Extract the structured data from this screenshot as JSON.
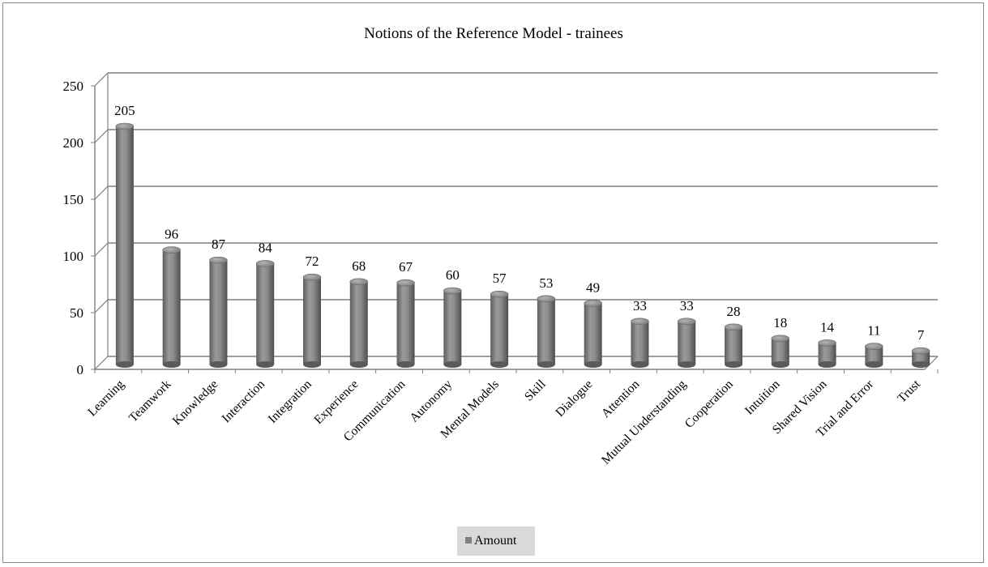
{
  "chart_data": {
    "type": "bar",
    "title": "Notions of the Reference Model - trainees",
    "categories": [
      "Learning",
      "Teamwork",
      "Knowledge",
      "Interaction",
      "Integration",
      "Experience",
      "Communication",
      "Autonomy",
      "Mental Models",
      "Skill",
      "Dialogue",
      "Attention",
      "Mutual Understanding",
      "Cooperation",
      "Intuition",
      "Shared Vision",
      "Trial and Error",
      "Trust"
    ],
    "series": [
      {
        "name": "Amount",
        "values": [
          205,
          96,
          87,
          84,
          72,
          68,
          67,
          60,
          57,
          53,
          49,
          33,
          33,
          28,
          18,
          14,
          11,
          7
        ]
      }
    ],
    "ylim": [
      0,
      250
    ],
    "yticks": [
      0,
      50,
      100,
      150,
      200,
      250
    ],
    "grid": true,
    "legend": "bottom",
    "colors": {
      "bar": "#808080",
      "grid": "#7f7f7f"
    }
  }
}
